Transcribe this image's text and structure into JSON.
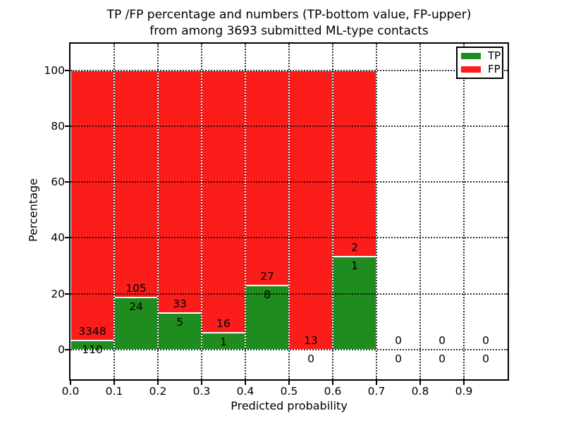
{
  "figure": {
    "title_line1": "TP /FP percentage and numbers (TP-bottom value, FP-upper)",
    "title_line2": "from among 3693 submitted ML-type contacts",
    "xlabel": "Predicted probability",
    "ylabel": "Percentage"
  },
  "chart_data": {
    "type": "bar",
    "variant": "stacked-100-percent",
    "title": "TP /FP percentage and numbers (TP-bottom value, FP-upper) from among 3693 submitted ML-type contacts",
    "xlabel": "Predicted probability",
    "ylabel": "Percentage",
    "total_submitted_contacts": 3693,
    "grid": "dotted, drawn above bars",
    "x_ticks": [
      "0.0",
      "0.1",
      "0.2",
      "0.3",
      "0.4",
      "0.5",
      "0.6",
      "0.7",
      "0.8",
      "0.9"
    ],
    "y_ticks": [
      "0",
      "20",
      "40",
      "60",
      "80",
      "100"
    ],
    "xlim": [
      0.0,
      1.0
    ],
    "ylim": [
      -10.7,
      109.6
    ],
    "annotation_note": "FP count printed just above TP/FP boundary, TP count just below it",
    "bins": [
      {
        "x_start": 0.0,
        "x_end": 0.1,
        "tp": 110,
        "fp": 3348,
        "tp_pct": 3.2,
        "fp_pct": 96.8
      },
      {
        "x_start": 0.1,
        "x_end": 0.2,
        "tp": 24,
        "fp": 105,
        "tp_pct": 18.6,
        "fp_pct": 81.4
      },
      {
        "x_start": 0.2,
        "x_end": 0.3,
        "tp": 5,
        "fp": 33,
        "tp_pct": 13.2,
        "fp_pct": 86.8
      },
      {
        "x_start": 0.3,
        "x_end": 0.4,
        "tp": 1,
        "fp": 16,
        "tp_pct": 5.9,
        "fp_pct": 94.1
      },
      {
        "x_start": 0.4,
        "x_end": 0.5,
        "tp": 8,
        "fp": 27,
        "tp_pct": 22.9,
        "fp_pct": 77.1
      },
      {
        "x_start": 0.5,
        "x_end": 0.6,
        "tp": 0,
        "fp": 13,
        "tp_pct": 0.0,
        "fp_pct": 100.0
      },
      {
        "x_start": 0.6,
        "x_end": 0.7,
        "tp": 1,
        "fp": 2,
        "tp_pct": 33.3,
        "fp_pct": 66.7
      },
      {
        "x_start": 0.7,
        "x_end": 0.8,
        "tp": 0,
        "fp": 0,
        "tp_pct": 0.0,
        "fp_pct": 0.0
      },
      {
        "x_start": 0.8,
        "x_end": 0.9,
        "tp": 0,
        "fp": 0,
        "tp_pct": 0.0,
        "fp_pct": 0.0
      },
      {
        "x_start": 0.9,
        "x_end": 1.0,
        "tp": 0,
        "fp": 0,
        "tp_pct": 0.0,
        "fp_pct": 0.0
      }
    ],
    "legend": {
      "position": "upper right",
      "entries": [
        {
          "label": "TP",
          "color": "#1e8c1e"
        },
        {
          "label": "FP",
          "color": "#fb1d1a"
        }
      ]
    },
    "colors": {
      "tp_green": "#1e8c1e",
      "fp_red": "#fb1d1a",
      "grid": "#000000",
      "background": "#ffffff"
    }
  }
}
